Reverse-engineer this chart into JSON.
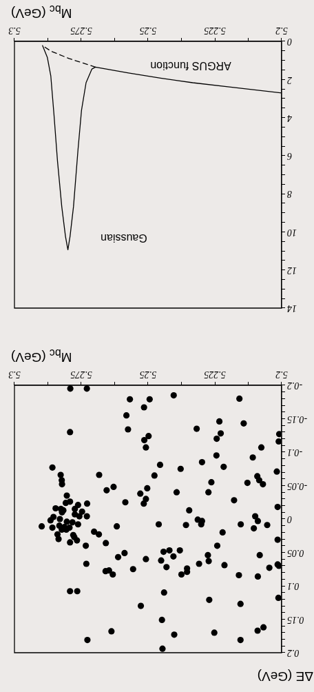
{
  "chart_data": [
    {
      "type": "line",
      "xlabel": "M$_{bc}$ (GeV)",
      "xlim": [
        5.3,
        5.2
      ],
      "ylim": [
        14,
        0
      ],
      "marker": "none",
      "xticks": [
        5.2,
        {
          "value": 5.2125,
          "label": null
        },
        5.225,
        {
          "value": 5.2375,
          "label": null
        },
        5.25,
        {
          "value": 5.2625,
          "label": null
        },
        5.275,
        {
          "value": 5.2875,
          "label": null
        },
        5.3
      ],
      "yticks": [
        0,
        {
          "value": 0.5,
          "label": null
        },
        {
          "value": 1,
          "label": null
        },
        {
          "value": 1.5,
          "label": null
        },
        2,
        {
          "value": 2.5,
          "label": null
        },
        {
          "value": 3,
          "label": null
        },
        {
          "value": 3.5,
          "label": null
        },
        4,
        {
          "value": 4.5,
          "label": null
        },
        {
          "value": 5,
          "label": null
        },
        {
          "value": 5.5,
          "label": null
        },
        6,
        {
          "value": 6.5,
          "label": null
        },
        {
          "value": 7,
          "label": null
        },
        {
          "value": 7.5,
          "label": null
        },
        8,
        {
          "value": 8.5,
          "label": null
        },
        {
          "value": 9,
          "label": null
        },
        {
          "value": 9.5,
          "label": null
        },
        10,
        {
          "value": 10.5,
          "label": null
        },
        {
          "value": 11,
          "label": null
        },
        {
          "value": 11.5,
          "label": null
        },
        12,
        {
          "value": 12.5,
          "label": null
        },
        {
          "value": 13,
          "label": null
        },
        {
          "value": 13.5,
          "label": null
        },
        14
      ],
      "series": [
        {
          "color": "#000000",
          "line_style": "solid",
          "x": [
            5.2,
            5.2196,
            5.2333,
            5.2453,
            5.2573,
            5.2697,
            5.271,
            5.2732,
            5.2749,
            5.2762,
            5.2779,
            5.2792,
            5.28,
            5.2809,
            5.2823,
            5.2839,
            5.2852,
            5.2864,
            5.2877,
            5.2895
          ],
          "values": [
            2.71,
            2.39,
            2.17,
            1.93,
            1.66,
            1.35,
            1.45,
            2.17,
            3.61,
            5.66,
            8.67,
            10.24,
            10.94,
            10.24,
            8.67,
            6.27,
            3.86,
            1.81,
            0.84,
            0.22
          ]
        },
        {
          "color": "#000000",
          "line_style": "dashed",
          "x": [
            5.2697,
            5.2796,
            5.2864,
            5.2895
          ],
          "values": [
            1.35,
            0.9,
            0.51,
            0.22
          ]
        }
      ],
      "annotations": [
        "Gaussian",
        "ARGUS function"
      ]
    },
    {
      "type": "scatter",
      "xlabel": "M$_{bc}$ (GeV)",
      "ylabel": "ΔE (GeV)",
      "xlim": [
        5.3,
        5.2
      ],
      "ylim": [
        0.2,
        -0.2
      ],
      "marker": "circle",
      "color": "#000000",
      "xticks": [
        5.2,
        {
          "value": 5.2125,
          "label": null
        },
        5.225,
        {
          "value": 5.2375,
          "label": null
        },
        5.25,
        {
          "value": 5.2625,
          "label": null
        },
        5.275,
        {
          "value": 5.2875,
          "label": null
        },
        5.3
      ],
      "yticks": [
        -0.2,
        {
          "value": -0.19,
          "label": null
        },
        {
          "value": -0.18,
          "label": null
        },
        {
          "value": -0.17,
          "label": null
        },
        {
          "value": -0.16,
          "label": null
        },
        -0.15,
        {
          "value": -0.14,
          "label": null
        },
        {
          "value": -0.13,
          "label": null
        },
        {
          "value": -0.12,
          "label": null
        },
        {
          "value": -0.11,
          "label": null
        },
        -0.1,
        {
          "value": -0.09,
          "label": null
        },
        {
          "value": -0.08,
          "label": null
        },
        {
          "value": -0.07,
          "label": null
        },
        {
          "value": -0.06,
          "label": null
        },
        -0.05,
        {
          "value": -0.04,
          "label": null
        },
        {
          "value": -0.03,
          "label": null
        },
        {
          "value": -0.02,
          "label": null
        },
        {
          "value": -0.01,
          "label": null
        },
        0,
        {
          "value": 0.01,
          "label": null
        },
        {
          "value": 0.02,
          "label": null
        },
        {
          "value": 0.03,
          "label": null
        },
        {
          "value": 0.04,
          "label": null
        },
        0.05,
        {
          "value": 0.06,
          "label": null
        },
        {
          "value": 0.07,
          "label": null
        },
        {
          "value": 0.08,
          "label": null
        },
        {
          "value": 0.09,
          "label": null
        },
        0.1,
        {
          "value": 0.11,
          "label": null
        },
        {
          "value": 0.12,
          "label": null
        },
        {
          "value": 0.13,
          "label": null
        },
        {
          "value": 0.14,
          "label": null
        },
        0.15,
        {
          "value": 0.16,
          "label": null
        },
        {
          "value": 0.17,
          "label": null
        },
        {
          "value": 0.18,
          "label": null
        },
        {
          "value": 0.19,
          "label": null
        },
        0.2
      ],
      "x": [
        5.2791,
        5.2729,
        5.2568,
        5.2494,
        5.2404,
        5.2158,
        5.2515,
        5.2581,
        5.2233,
        5.2142,
        5.2575,
        5.2318,
        5.2792,
        5.2228,
        5.2009,
        5.2498,
        5.2243,
        5.2514,
        5.2011,
        5.2508,
        5.2076,
        5.2244,
        5.2108,
        5.2298,
        5.2455,
        5.2858,
        5.2378,
        5.2217,
        5.2018,
        5.2683,
        5.2827,
        5.2476,
        5.2091,
        5.2823,
        5.2084,
        5.2263,
        5.2128,
        5.207,
        5.2822,
        5.2629,
        5.2503,
        5.2655,
        5.2393,
        5.2274,
        5.2529,
        5.2804,
        5.2178,
        5.2508,
        5.2585,
        5.2516,
        5.2728,
        5.2015,
        5.2346,
        5.2099,
        5.2729,
        5.2314,
        5.2298,
        5.2301,
        5.2089,
        5.2153,
        5.2054,
        5.2358,
        5.246,
        5.2617,
        5.2898,
        5.2104,
        5.2221,
        5.2702,
        5.2684,
        5.2015,
        5.2658,
        5.2733,
        5.2241,
        5.2442,
        5.242,
        5.2381,
        5.2588,
        5.2082,
        5.2276,
        5.2405,
        5.2612,
        5.2508,
        5.2451,
        5.2273,
        5.2731,
        5.2309,
        5.2214,
        5.2015,
        5.201,
        5.2431,
        5.2046,
        5.2556,
        5.2354,
        5.2659,
        5.2646,
        5.2354,
        5.2632,
        5.2375,
        5.216,
        5.2089,
        5.2792,
        5.2765,
        5.244,
        5.2012,
        5.2271,
        5.2154,
        5.2527,
        5.2448,
        5.2068,
        5.209,
        5.2637,
        5.2252,
        5.2402,
        5.2727,
        5.2154,
        5.2446,
        5.2846,
        5.2854,
        5.2865,
        5.2858,
        5.2839,
        5.2835,
        5.2826,
        5.2817,
        5.2808,
        5.2792,
        5.2762,
        5.2774,
        5.2747,
        5.2774,
        5.2757,
        5.283,
        5.2804,
        5.2783,
        5.2762,
        5.2832,
        5.2813,
        5.2794,
        5.2823,
        5.2806,
        5.278,
        5.2776,
        5.2766,
        5.2792,
        5.2822
      ],
      "values": [
        -0.195,
        -0.195,
        -0.179,
        -0.179,
        -0.185,
        -0.18,
        -0.167,
        -0.155,
        -0.146,
        -0.143,
        -0.134,
        -0.135,
        -0.13,
        -0.128,
        -0.127,
        -0.124,
        -0.12,
        -0.118,
        -0.116,
        -0.107,
        -0.107,
        -0.095,
        -0.092,
        -0.085,
        -0.081,
        -0.077,
        -0.075,
        -0.078,
        -0.071,
        -0.066,
        -0.066,
        -0.065,
        -0.064,
        -0.058,
        -0.058,
        -0.055,
        -0.054,
        -0.052,
        -0.052,
        -0.048,
        -0.046,
        -0.043,
        -0.04,
        -0.04,
        -0.038,
        -0.035,
        -0.028,
        -0.03,
        -0.025,
        -0.023,
        -0.023,
        -0.018,
        -0.013,
        -0.004,
        -0.004,
        0.001,
        0.003,
        0.008,
        0.003,
        0.008,
        0.009,
        0.009,
        0.008,
        0.011,
        0.011,
        0.014,
        0.02,
        0.019,
        0.023,
        0.031,
        0.036,
        0.04,
        0.04,
        0.049,
        0.047,
        0.047,
        0.051,
        0.054,
        0.054,
        0.056,
        0.057,
        0.06,
        0.062,
        0.063,
        0.067,
        0.067,
        0.069,
        0.068,
        0.07,
        0.072,
        0.073,
        0.075,
        0.074,
        0.078,
        0.077,
        0.079,
        0.083,
        0.083,
        0.084,
        0.086,
        0.108,
        0.108,
        0.11,
        0.118,
        0.121,
        0.127,
        0.13,
        0.151,
        0.162,
        0.167,
        0.168,
        0.17,
        0.173,
        0.181,
        0.181,
        0.194,
        -0.016,
        -0.003,
        0.002,
        0.013,
        0.023,
        0.03,
        -0.015,
        -0.013,
        -0.024,
        -0.026,
        -0.021,
        -0.015,
        -0.011,
        -0.007,
        -0.004,
        0,
        0.004,
        0.005,
        0.008,
        0.01,
        0.012,
        0.013,
        0.016,
        0.016,
        0.024,
        0.027,
        0.032,
        0.035,
        -0.01
      ]
    }
  ]
}
